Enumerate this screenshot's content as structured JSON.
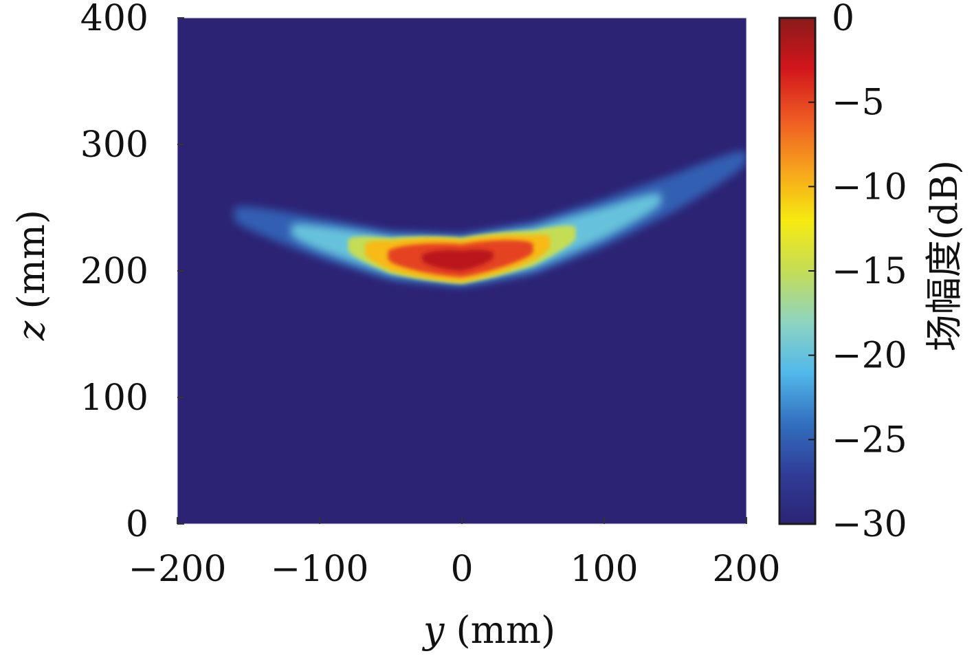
{
  "chart_data": {
    "type": "heatmap",
    "title": "",
    "xlabel": {
      "var": "y",
      "unit": " (mm)"
    },
    "ylabel": {
      "var": "z",
      "unit": " (mm)"
    },
    "xlim": [
      -200,
      200
    ],
    "ylim": [
      0,
      400
    ],
    "x_ticks": [
      -200,
      -100,
      0,
      100,
      200
    ],
    "x_tick_labels": [
      "−200",
      "−100",
      "0",
      "100",
      "200"
    ],
    "y_ticks": [
      0,
      100,
      200,
      300,
      400
    ],
    "y_tick_labels": [
      "0",
      "100",
      "200",
      "300",
      "400"
    ],
    "colorbar": {
      "label": "场幅度(dB)",
      "range": [
        -30,
        0
      ],
      "ticks": [
        0,
        -5,
        -10,
        -15,
        -20,
        -25,
        -30
      ],
      "tick_labels": [
        "0",
        "−5",
        "−10",
        "−15",
        "−20",
        "−25",
        "−30"
      ],
      "colormap": [
        "#2c2374",
        "#2f3d97",
        "#3370c0",
        "#52b9ea",
        "#8fd4c0",
        "#c4dd55",
        "#f6ea10",
        "#f7a21c",
        "#ee5a23",
        "#d2161b",
        "#8b1a1a"
      ]
    },
    "background_level_db": -30,
    "field_description": "curved beam band, peak 0 dB near y=0, z=210 mm",
    "beam_band": {
      "centerline": [
        {
          "y": -160,
          "z": 245
        },
        {
          "y": -100,
          "z": 226
        },
        {
          "y": -50,
          "z": 212
        },
        {
          "y": 0,
          "z": 208
        },
        {
          "y": 50,
          "z": 218
        },
        {
          "y": 100,
          "z": 238
        },
        {
          "y": 150,
          "z": 262
        },
        {
          "y": 200,
          "z": 290
        }
      ],
      "levels": [
        {
          "db": -25,
          "y_range": [
            -160,
            200
          ],
          "thickness_mm": 42
        },
        {
          "db": -20,
          "y_range": [
            -120,
            140
          ],
          "thickness_mm": 34
        },
        {
          "db": -15,
          "y_range": [
            -80,
            80
          ],
          "thickness_mm": 36
        },
        {
          "db": -10,
          "y_range": [
            -68,
            62
          ],
          "thickness_mm": 34
        },
        {
          "db": -5,
          "y_range": [
            -52,
            50
          ],
          "thickness_mm": 26
        },
        {
          "db": -2,
          "y_range": [
            -28,
            22
          ],
          "thickness_mm": 16
        }
      ]
    }
  }
}
